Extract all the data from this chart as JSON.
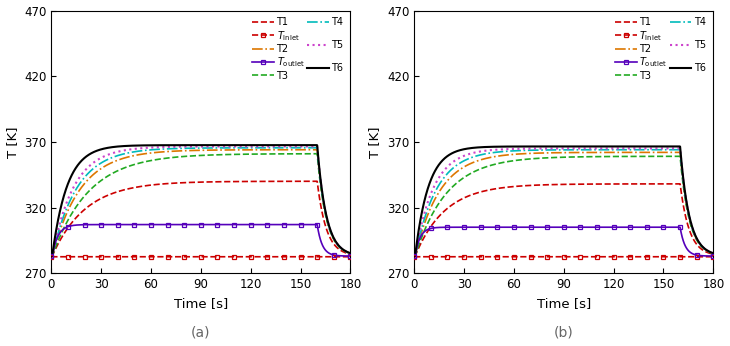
{
  "xlim": [
    0,
    180
  ],
  "ylim": [
    270,
    470
  ],
  "yticks": [
    270,
    320,
    370,
    420,
    470
  ],
  "xticks": [
    0,
    30,
    60,
    90,
    120,
    150,
    180
  ],
  "xlabel": "Time [s]",
  "ylabel": "T [K]",
  "panel_labels": [
    "(a)",
    "(b)"
  ],
  "colors": {
    "T1": "#cc0000",
    "T2": "#dd7700",
    "T3": "#22aa22",
    "T4": "#00bbbb",
    "T5": "#cc44cc",
    "T6": "#000000",
    "Tinlet": "#cc0000",
    "Toutlet": "#5500bb"
  },
  "legend_labels": [
    "T1",
    "T2",
    "T3",
    "T4",
    "T5",
    "T6",
    "T_inlet",
    "T_outlet"
  ],
  "t_heat_end": 160,
  "v0": 283.0,
  "panels": {
    "a": {
      "T_inlet_val": 282.5,
      "T_outlet_val": 307.0,
      "T_outlet_rise_tau": 3.5,
      "T1_plateau": 340.0,
      "T1_rise_tau": 20.0,
      "T2_plateau": 364.0,
      "T2_rise_tau": 17.0,
      "T3_plateau": 361.0,
      "T3_rise_tau": 22.0,
      "T4_plateau": 365.5,
      "T4_rise_tau": 15.0,
      "T5_plateau": 366.5,
      "T5_rise_tau": 13.0,
      "T6_plateau": 367.5,
      "T6_rise_tau": 9.0,
      "fall_tau": 5.5
    },
    "b": {
      "T_inlet_val": 282.5,
      "T_outlet_val": 305.0,
      "T_outlet_rise_tau": 3.0,
      "T1_plateau": 338.0,
      "T1_rise_tau": 18.0,
      "T2_plateau": 362.0,
      "T2_rise_tau": 15.0,
      "T3_plateau": 359.0,
      "T3_rise_tau": 19.0,
      "T4_plateau": 364.0,
      "T4_rise_tau": 13.0,
      "T5_plateau": 365.0,
      "T5_rise_tau": 11.0,
      "T6_plateau": 366.5,
      "T6_rise_tau": 8.0,
      "fall_tau": 5.5
    }
  }
}
